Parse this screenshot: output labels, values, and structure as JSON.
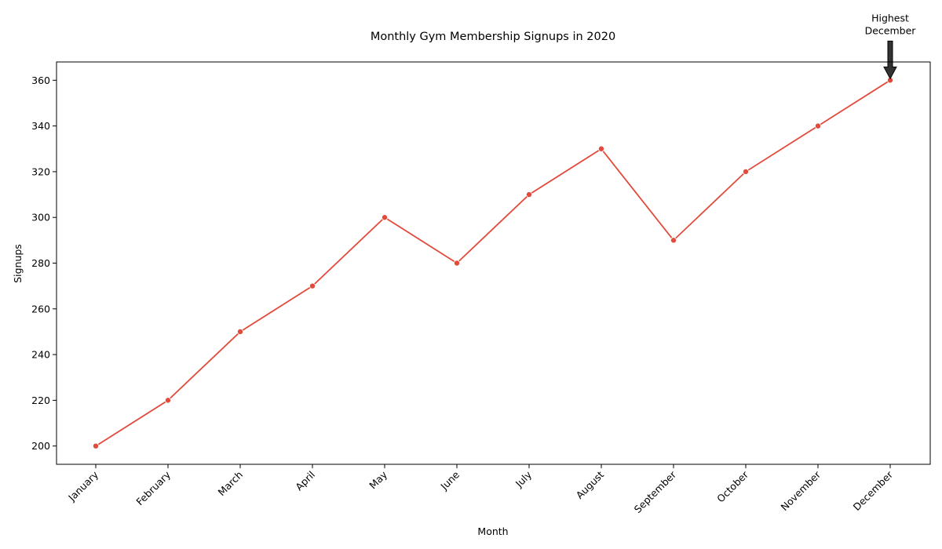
{
  "chart_data": {
    "type": "line",
    "title": "Monthly Gym Membership Signups in 2020",
    "xlabel": "Month",
    "ylabel": "Signups",
    "categories": [
      "January",
      "February",
      "March",
      "April",
      "May",
      "June",
      "July",
      "August",
      "September",
      "October",
      "November",
      "December"
    ],
    "series": [
      {
        "values": [
          200,
          220,
          250,
          270,
          300,
          280,
          310,
          330,
          290,
          320,
          340,
          360
        ],
        "color": "#e24a3b"
      }
    ],
    "ylim": [
      192,
      368
    ],
    "yticks": [
      200,
      220,
      240,
      260,
      280,
      300,
      320,
      340,
      360
    ],
    "grid": false,
    "legend": "none",
    "annotation": {
      "line1": "Highest",
      "line2": "December",
      "category": "December",
      "value": 360
    }
  }
}
